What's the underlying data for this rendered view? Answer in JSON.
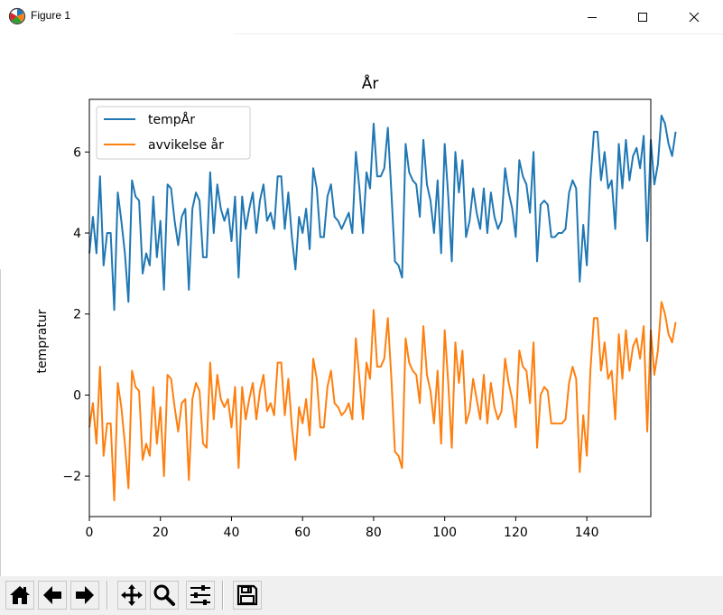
{
  "window": {
    "title": "Figure 1",
    "app_icon": "matplotlib-logo-icon",
    "controls": [
      "minimize-icon",
      "maximize-icon",
      "close-icon"
    ]
  },
  "toolbar": {
    "buttons": [
      "home-icon",
      "back-arrow-icon",
      "forward-arrow-icon",
      "pan-move-icon",
      "zoom-magnifier-icon",
      "configure-subplots-icon",
      "save-disk-icon"
    ]
  },
  "chart_data": {
    "type": "line",
    "title": "År",
    "xlabel": "",
    "ylabel": "tempratur",
    "xlim": [
      0,
      158
    ],
    "ylim": [
      -3.0,
      7.3
    ],
    "xticks": [
      0,
      20,
      40,
      60,
      80,
      100,
      120,
      140
    ],
    "yticks": [
      -2,
      0,
      2,
      4,
      6
    ],
    "ytick_labels": [
      "−2",
      "0",
      "2",
      "4",
      "6"
    ],
    "grid": false,
    "legend": "top-left",
    "x_start": 0,
    "series": [
      {
        "name": "tempÅr",
        "color": "#1f77b4",
        "values": [
          3.5,
          4.4,
          3.5,
          5.4,
          3.2,
          4.0,
          4.0,
          2.1,
          5.0,
          4.3,
          3.5,
          2.3,
          5.3,
          4.9,
          4.8,
          3.0,
          3.5,
          3.2,
          4.9,
          3.4,
          4.3,
          2.6,
          5.2,
          5.1,
          4.3,
          3.7,
          4.4,
          4.6,
          2.6,
          4.6,
          5.0,
          4.8,
          3.4,
          3.4,
          5.5,
          4.0,
          5.2,
          4.6,
          4.3,
          4.6,
          3.8,
          4.9,
          2.9,
          4.9,
          4.1,
          4.6,
          5.0,
          4.0,
          4.8,
          5.2,
          4.3,
          4.5,
          4.1,
          5.4,
          5.4,
          4.1,
          5.0,
          3.9,
          3.1,
          4.4,
          4.0,
          4.6,
          3.6,
          5.6,
          5.1,
          3.9,
          3.9,
          4.9,
          5.2,
          4.4,
          4.3,
          4.1,
          4.3,
          4.5,
          4.0,
          6.0,
          5.1,
          4.0,
          5.5,
          5.1,
          6.7,
          5.4,
          5.4,
          5.6,
          6.6,
          5.0,
          3.3,
          3.2,
          2.9,
          6.2,
          5.5,
          5.3,
          5.2,
          4.4,
          6.3,
          5.2,
          4.8,
          4.0,
          5.3,
          3.5,
          6.2,
          4.9,
          3.3,
          6.0,
          5.0,
          5.8,
          3.9,
          4.3,
          5.1,
          4.5,
          4.1,
          5.1,
          4.0,
          5.0,
          4.4,
          4.1,
          4.3,
          5.6,
          5.0,
          4.6,
          3.9,
          5.8,
          5.4,
          5.2,
          4.5,
          6.0,
          3.3,
          4.7,
          4.8,
          4.7,
          3.9,
          3.9,
          4.0,
          4.0,
          4.1,
          5.0,
          5.3,
          5.1,
          2.8,
          4.2,
          3.2,
          5.3,
          6.5,
          6.5,
          5.3,
          6.0,
          5.1,
          5.3,
          4.1,
          6.2,
          5.1,
          6.3,
          5.3,
          5.9,
          6.1,
          5.6,
          6.4,
          3.8,
          6.3,
          5.2,
          5.7,
          6.9,
          6.7,
          6.2,
          5.9,
          6.5
        ]
      },
      {
        "name": "avvikelse år",
        "color": "#ff7f0e",
        "values": [
          -0.8,
          -0.2,
          -1.2,
          0.7,
          -1.5,
          -0.7,
          -0.7,
          -2.6,
          0.3,
          -0.3,
          -1.2,
          -2.3,
          0.6,
          0.2,
          0.1,
          -1.6,
          -1.2,
          -1.5,
          0.2,
          -1.2,
          -0.3,
          -2.0,
          0.5,
          0.4,
          -0.3,
          -0.9,
          -0.2,
          -0.1,
          -2.1,
          -0.1,
          0.3,
          0.1,
          -1.2,
          -1.3,
          0.8,
          -0.6,
          0.5,
          -0.1,
          -0.3,
          -0.1,
          -0.8,
          0.2,
          -1.8,
          0.2,
          -0.6,
          -0.1,
          0.3,
          -0.6,
          0.1,
          0.5,
          -0.4,
          -0.2,
          -0.5,
          0.8,
          0.8,
          -0.5,
          0.4,
          -0.8,
          -1.6,
          -0.3,
          -0.7,
          -0.1,
          -1.0,
          0.9,
          0.4,
          -0.8,
          -0.8,
          0.2,
          0.6,
          -0.2,
          -0.3,
          -0.5,
          -0.4,
          -0.2,
          -0.6,
          1.4,
          0.4,
          -0.6,
          0.8,
          0.4,
          2.1,
          0.7,
          0.7,
          0.9,
          1.9,
          0.4,
          -1.4,
          -1.5,
          -1.8,
          1.4,
          0.8,
          0.6,
          0.5,
          -0.2,
          1.7,
          0.5,
          0.1,
          -0.7,
          0.6,
          -1.2,
          1.6,
          0.3,
          -1.3,
          1.3,
          0.3,
          1.1,
          -0.7,
          -0.4,
          0.4,
          -0.1,
          -0.6,
          0.5,
          -0.7,
          0.3,
          -0.3,
          -0.6,
          -0.4,
          0.9,
          0.3,
          -0.1,
          -0.8,
          1.1,
          0.7,
          0.6,
          -0.2,
          1.3,
          -1.3,
          0.0,
          0.2,
          0.1,
          -0.7,
          -0.7,
          -0.7,
          -0.7,
          -0.6,
          0.3,
          0.7,
          0.4,
          -1.9,
          -0.5,
          -1.5,
          0.6,
          1.9,
          1.9,
          0.6,
          1.3,
          0.4,
          0.6,
          -0.6,
          1.5,
          0.4,
          1.6,
          0.6,
          1.2,
          1.4,
          0.9,
          1.7,
          -0.9,
          1.6,
          0.5,
          1.1,
          2.3,
          2.0,
          1.5,
          1.3,
          1.8
        ]
      }
    ]
  }
}
